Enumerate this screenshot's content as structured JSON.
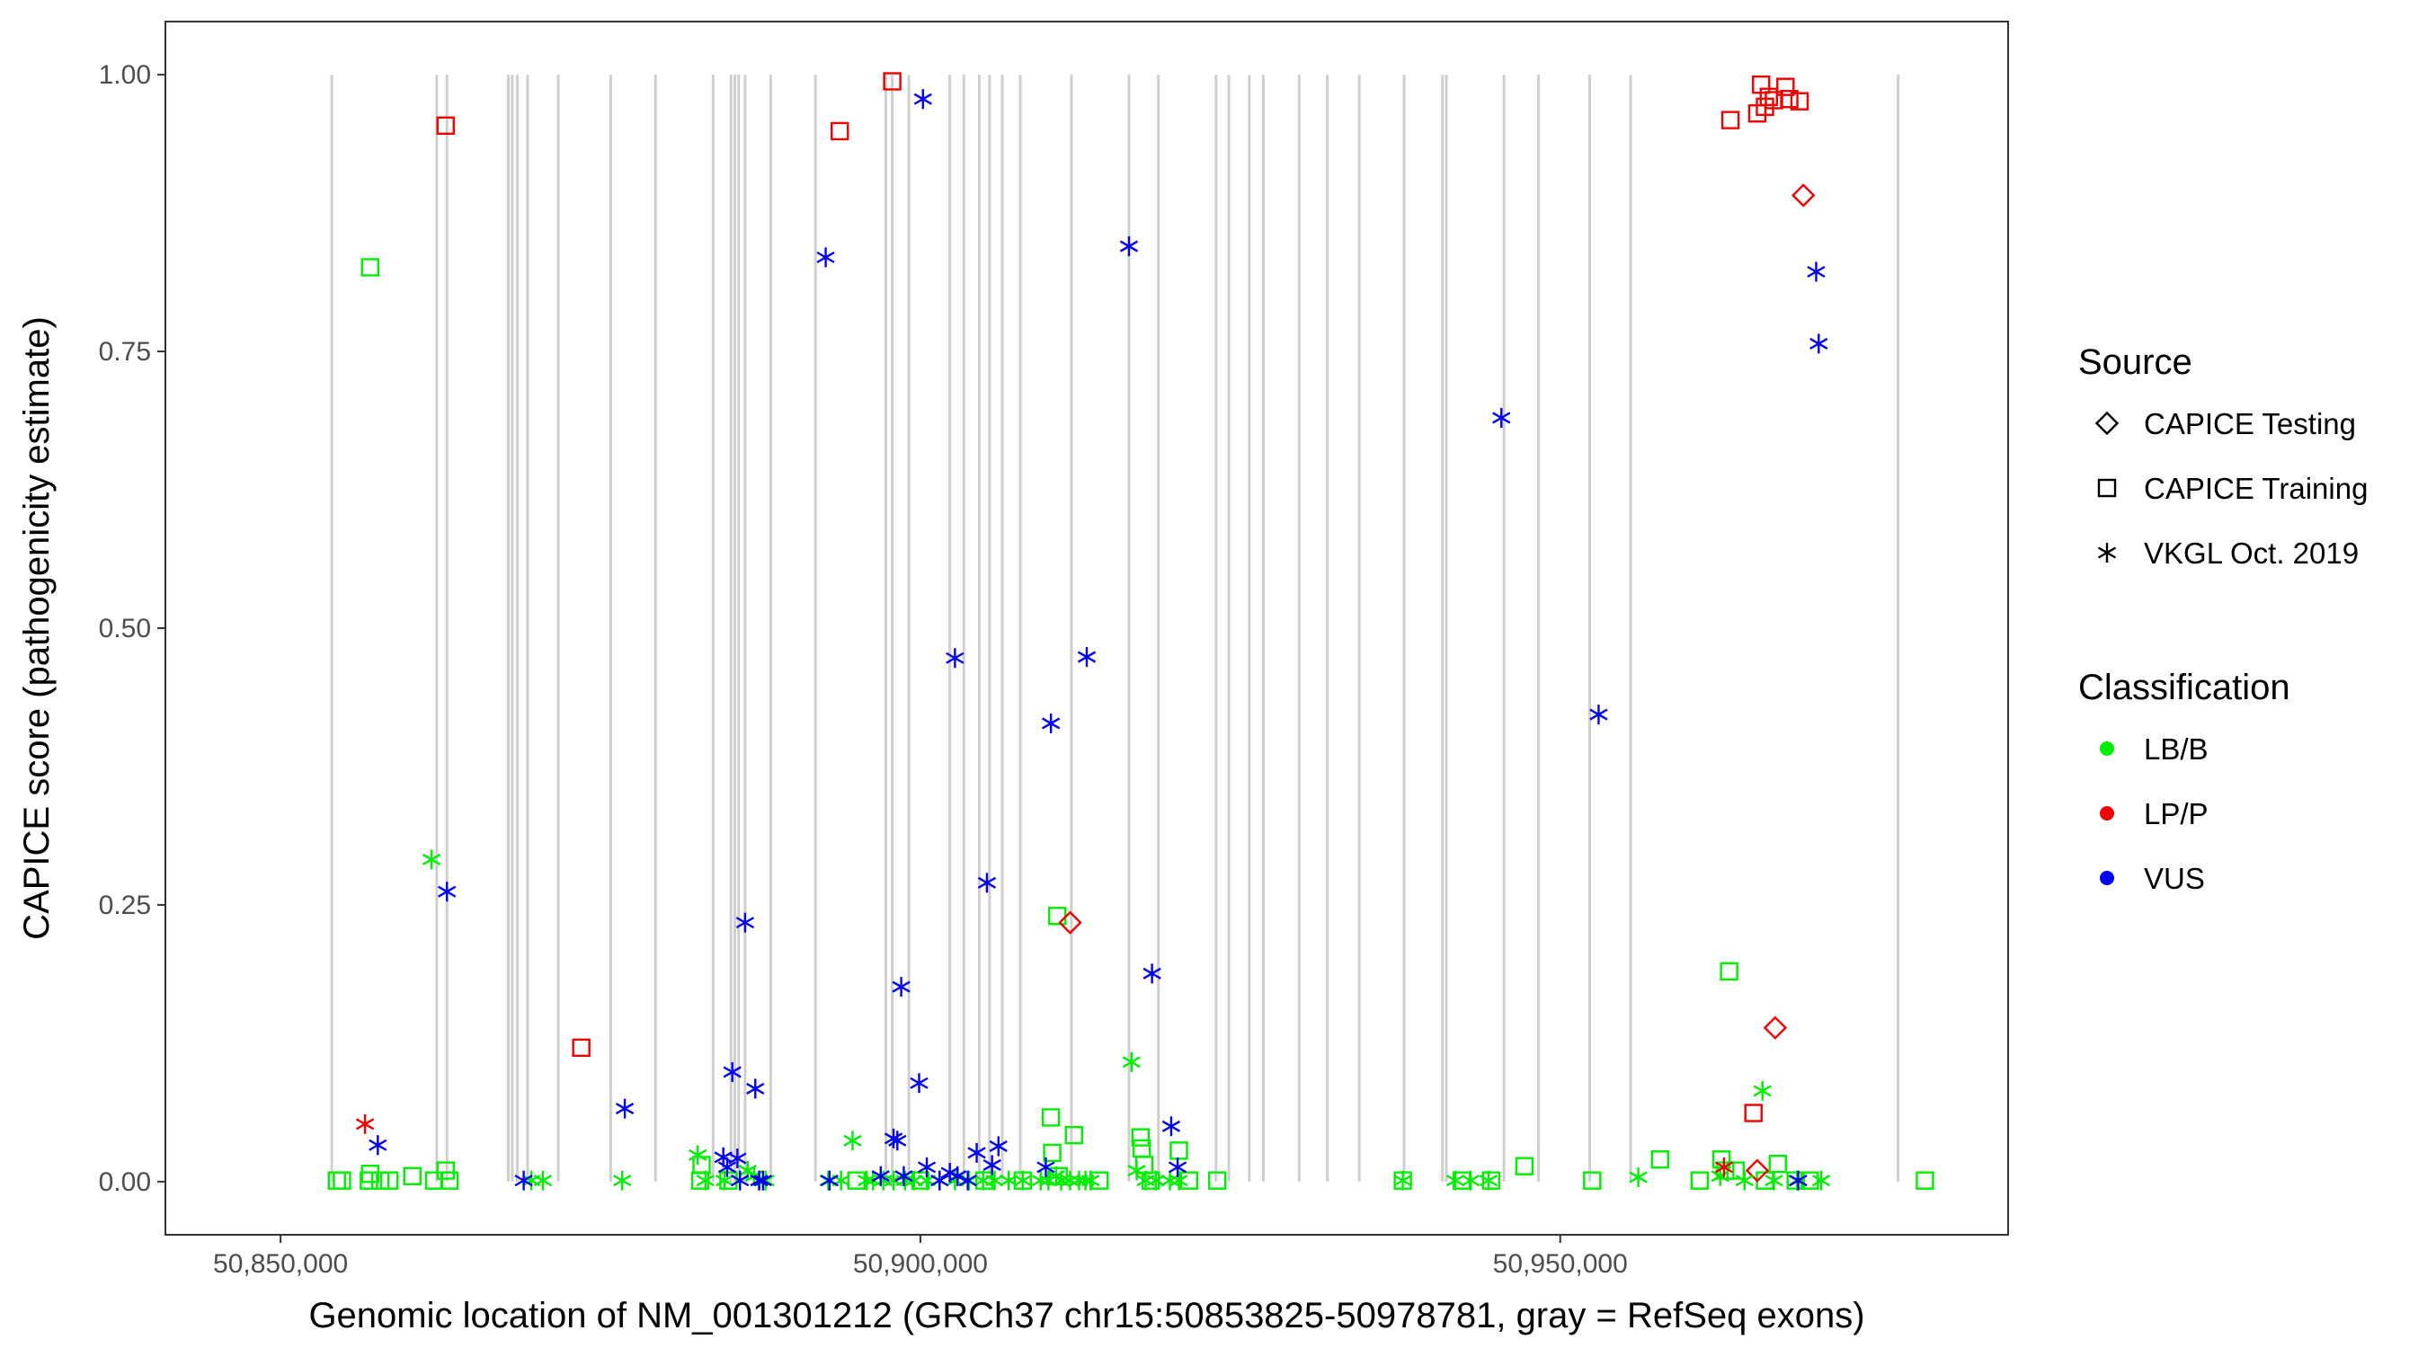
{
  "chart_data": {
    "type": "scatter",
    "title": "",
    "xlabel": "Genomic location of NM_001301212 (GRCh37 chr15:50853825-50978781, gray = RefSeq exons)",
    "ylabel": "CAPICE score (pathogenicity estimate)",
    "xlim": [
      50841000,
      50985000
    ],
    "ylim": [
      -0.048,
      1.048
    ],
    "x_ticks": [
      50850000,
      50900000,
      50950000
    ],
    "x_tick_labels": [
      "50,850,000",
      "50,900,000",
      "50,950,000"
    ],
    "y_ticks": [
      0,
      0.25,
      0.5,
      0.75,
      1.0
    ],
    "y_tick_labels": [
      "0.00",
      "0.25",
      "0.50",
      "0.75",
      "1.00"
    ],
    "grid": false,
    "exons": [
      50854000,
      50862200,
      50863000,
      50867800,
      50868100,
      50868500,
      50869300,
      50871700,
      50875800,
      50879300,
      50883800,
      50885200,
      50885500,
      50885800,
      50886300,
      50888300,
      50891800,
      50897300,
      50897800,
      50899100,
      50902300,
      50903400,
      50904600,
      50905400,
      50906400,
      50907800,
      50911800,
      50916300,
      50918600,
      50923100,
      50924100,
      50925700,
      50926800,
      50929600,
      50931800,
      50934300,
      50937800,
      50940800,
      50941100,
      50945600,
      50948300,
      50952300,
      50955500,
      50976400
    ],
    "legend": {
      "position": "right",
      "source_title": "Source",
      "source_entries": [
        {
          "label": "CAPICE Testing",
          "shape": "diamond"
        },
        {
          "label": "CAPICE Training",
          "shape": "square"
        },
        {
          "label": "VKGL Oct. 2019",
          "shape": "asterisk"
        }
      ],
      "class_title": "Classification",
      "class_entries": [
        {
          "label": "LB/B",
          "color": "#00ee00"
        },
        {
          "label": "LP/P",
          "color": "#ee0000"
        },
        {
          "label": "VUS",
          "color": "#0000ee"
        }
      ]
    },
    "series": [
      {
        "source": "CAPICE Training",
        "classification": "LB/B",
        "shape": "square",
        "color": "#00ee00",
        "x": [
          50854400,
          50854800,
          50856900,
          50857000,
          50857800,
          50858500,
          50860300,
          50862000,
          50862900,
          50863200,
          50857000,
          50882800,
          50882900,
          50910200,
          50910300,
          50910700,
          50912000,
          50917200,
          50917300,
          50917500,
          50920200,
          50923200,
          50937700,
          50942300,
          50944600,
          50947200,
          50952500,
          50957800,
          50960900,
          50962600,
          50963200,
          50963700,
          50967000,
          50968400,
          50969500,
          50978500,
          50910800,
          50962900,
          50885000,
          50895000,
          50900000,
          50905000,
          50908000,
          50914000,
          50918000,
          50921000,
          50966000
        ],
        "y": [
          0.001,
          0.001,
          0.001,
          0.007,
          0.001,
          0.001,
          0.005,
          0.001,
          0.01,
          0.001,
          0.826,
          0.001,
          0.015,
          0.058,
          0.026,
          0.24,
          0.042,
          0.04,
          0.03,
          0.015,
          0.028,
          0.001,
          0.001,
          0.001,
          0.001,
          0.014,
          0.001,
          0.02,
          0.001,
          0.02,
          0.19,
          0.01,
          0.016,
          0.001,
          0.001,
          0.001,
          0.005,
          0.01,
          0.001,
          0.001,
          0.001,
          0.001,
          0.001,
          0.001,
          0.001,
          0.001,
          0.001
        ]
      },
      {
        "source": "CAPICE Training",
        "classification": "LP/P",
        "shape": "square",
        "color": "#ee0000",
        "x": [
          50862900,
          50873500,
          50893700,
          50897800,
          50963300,
          50965400,
          50965700,
          50966000,
          50966300,
          50966700,
          50967600,
          50967900,
          50968700,
          50965100
        ],
        "y": [
          0.954,
          0.121,
          0.949,
          0.994,
          0.959,
          0.965,
          0.991,
          0.971,
          0.98,
          0.977,
          0.989,
          0.978,
          0.976,
          0.062
        ]
      },
      {
        "source": "CAPICE Testing",
        "classification": "LP/P",
        "shape": "diamond",
        "color": "#ee0000",
        "x": [
          50911700,
          50969000,
          50966800,
          50965400
        ],
        "y": [
          0.234,
          0.891,
          0.139,
          0.01
        ]
      },
      {
        "source": "VKGL Oct. 2019",
        "classification": "LB/B",
        "shape": "asterisk",
        "color": "#00ee00",
        "x": [
          50861800,
          50869600,
          50870500,
          50876700,
          50882600,
          50883200,
          50884700,
          50885900,
          50886500,
          50887000,
          50887400,
          50887900,
          50892800,
          50893800,
          50894700,
          50895800,
          50896300,
          50897100,
          50897900,
          50898800,
          50899500,
          50900500,
          50901500,
          50902700,
          50903800,
          50904900,
          50905800,
          50906900,
          50908000,
          50909400,
          50910000,
          50910600,
          50911000,
          50911700,
          50912400,
          50912900,
          50913300,
          50916500,
          50916900,
          50917600,
          50918400,
          50919500,
          50920200,
          50937700,
          50941800,
          50943000,
          50944400,
          50956100,
          50962500,
          50964400,
          50965800,
          50966700,
          50968500,
          50970400
        ],
        "y": [
          0.291,
          0.001,
          0.001,
          0.001,
          0.024,
          0.001,
          0.001,
          0.001,
          0.01,
          0.005,
          0.001,
          0.001,
          0.001,
          0.001,
          0.037,
          0.001,
          0.001,
          0.001,
          0.001,
          0.001,
          0.001,
          0.001,
          0.001,
          0.001,
          0.001,
          0.001,
          0.001,
          0.001,
          0.001,
          0.001,
          0.001,
          0.005,
          0.001,
          0.001,
          0.001,
          0.001,
          0.001,
          0.108,
          0.01,
          0.001,
          0.001,
          0.001,
          0.001,
          0.001,
          0.001,
          0.001,
          0.001,
          0.004,
          0.005,
          0.001,
          0.082,
          0.001,
          0.001,
          0.001
        ]
      },
      {
        "source": "VKGL Oct. 2019",
        "classification": "LP/P",
        "shape": "asterisk",
        "color": "#ee0000",
        "x": [
          50856600,
          50962800
        ],
        "y": [
          0.052,
          0.013
        ]
      },
      {
        "source": "VKGL Oct. 2019",
        "classification": "VUS",
        "shape": "asterisk",
        "color": "#0000ee",
        "x": [
          50863000,
          50857600,
          50869000,
          50876900,
          50884600,
          50884900,
          50885300,
          50885700,
          50885900,
          50886300,
          50887100,
          50887400,
          50887700,
          50892600,
          50892900,
          50896900,
          50897900,
          50898200,
          50898500,
          50898700,
          50899900,
          50900200,
          50900500,
          50901500,
          50902300,
          50902700,
          50902900,
          50903700,
          50904400,
          50905200,
          50905600,
          50906100,
          50909800,
          50910200,
          50913000,
          50916300,
          50918100,
          50919600,
          50920100,
          50945400,
          50953000,
          50968600,
          50970000,
          50970200
        ],
        "y": [
          0.262,
          0.033,
          0.001,
          0.066,
          0.022,
          0.013,
          0.099,
          0.021,
          0.001,
          0.234,
          0.084,
          0.001,
          0.001,
          0.835,
          0.001,
          0.005,
          0.039,
          0.037,
          0.176,
          0.005,
          0.089,
          0.978,
          0.013,
          0.001,
          0.008,
          0.473,
          0.005,
          0.001,
          0.026,
          0.27,
          0.015,
          0.032,
          0.013,
          0.414,
          0.474,
          0.845,
          0.188,
          0.05,
          0.013,
          0.69,
          0.422,
          0.001,
          0.822,
          0.757
        ]
      }
    ]
  }
}
